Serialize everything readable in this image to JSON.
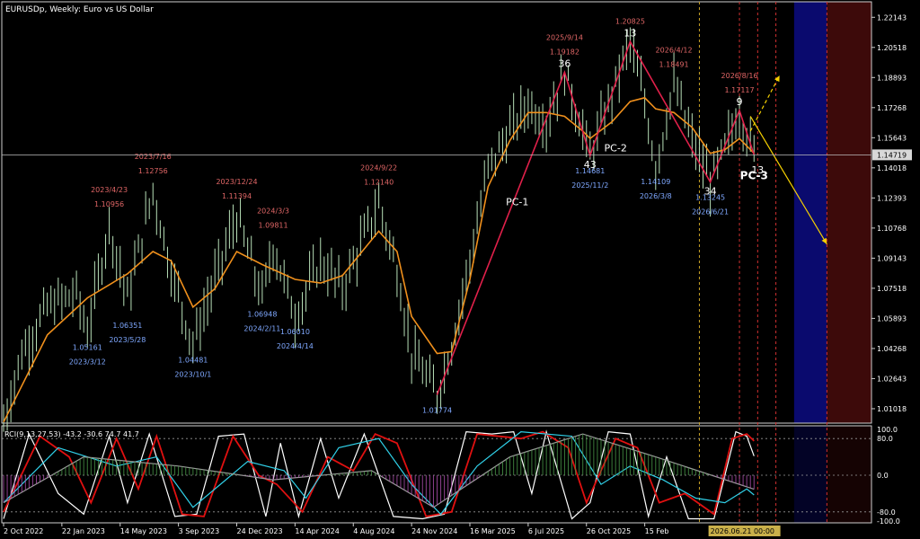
{
  "window": {
    "title": "EURUSDp, Weekly:  Euro vs US Dollar"
  },
  "chart_data": {
    "type": "line",
    "symbol": "EURUSDp",
    "timeframe": "Weekly",
    "price_axis": {
      "ticks": [
        "1.22143",
        "1.20518",
        "1.18893",
        "1.17268",
        "1.15643",
        "1.14018",
        "1.12393",
        "1.10768",
        "1.09143",
        "1.07518",
        "1.05893",
        "1.04268",
        "1.02643",
        "1.01018"
      ],
      "range": [
        1.0024,
        1.2298
      ],
      "current_price": "1.14719",
      "current_value": 1.14719
    },
    "time_axis": {
      "ticks": [
        "2 Oct 2022",
        "22 Jan 2023",
        "14 May 2023",
        "3 Sep 2023",
        "24 Dec 2023",
        "14 Apr 2024",
        "4 Aug 2024",
        "24 Nov 2024",
        "16 Mar 2025",
        "6 Jul 2025",
        "26 Oct 2025",
        "15 Feb"
      ],
      "cursor_label": "2026.06.21 00:00"
    },
    "price_series": [
      {
        "d": "2022-10-02",
        "p": 1.003
      },
      {
        "d": "2022-11-06",
        "p": 1.04
      },
      {
        "d": "2022-12-25",
        "p": 1.065
      },
      {
        "d": "2023-02-19",
        "p": 1.072
      },
      {
        "d": "2023-03-12",
        "p": 1.0516
      },
      {
        "d": "2023-04-23",
        "p": 1.1096
      },
      {
        "d": "2023-05-28",
        "p": 1.07
      },
      {
        "d": "2023-07-16",
        "p": 1.1276
      },
      {
        "d": "2023-08-20",
        "p": 1.085
      },
      {
        "d": "2023-10-01",
        "p": 1.0448
      },
      {
        "d": "2023-11-12",
        "p": 1.08
      },
      {
        "d": "2023-12-24",
        "p": 1.1139
      },
      {
        "d": "2024-02-11",
        "p": 1.07
      },
      {
        "d": "2024-03-03",
        "p": 1.0981
      },
      {
        "d": "2024-04-14",
        "p": 1.0601
      },
      {
        "d": "2024-06-02",
        "p": 1.09
      },
      {
        "d": "2024-07-14",
        "p": 1.075
      },
      {
        "d": "2024-09-22",
        "p": 1.1214
      },
      {
        "d": "2024-10-27",
        "p": 1.085
      },
      {
        "d": "2024-11-24",
        "p": 1.04
      },
      {
        "d": "2025-01-12",
        "p": 1.0177
      },
      {
        "d": "2025-02-09",
        "p": 1.045
      },
      {
        "d": "2025-03-16",
        "p": 1.09
      },
      {
        "d": "2025-04-20",
        "p": 1.14
      },
      {
        "d": "2025-06-01",
        "p": 1.16
      },
      {
        "d": "2025-07-06",
        "p": 1.175
      },
      {
        "d": "2025-08-10",
        "p": 1.165
      },
      {
        "d": "2025-09-14",
        "p": 1.1918
      },
      {
        "d": "2025-10-19",
        "p": 1.16
      },
      {
        "d": "2025-11-02",
        "p": 1.1468
      },
      {
        "d": "2025-12-14",
        "p": 1.18
      },
      {
        "d": "2026-01-18",
        "p": 1.2083
      },
      {
        "d": "2026-02-15",
        "p": 1.175
      },
      {
        "d": "2026-03-08",
        "p": 1.1411
      },
      {
        "d": "2026-04-12",
        "p": 1.1849
      },
      {
        "d": "2026-05-17",
        "p": 1.155
      },
      {
        "d": "2026-06-21",
        "p": 1.1325
      },
      {
        "d": "2026-07-19",
        "p": 1.15
      },
      {
        "d": "2026-08-16",
        "p": 1.1712
      },
      {
        "d": "2026-09-13",
        "p": 1.1472
      }
    ],
    "ma_series": [
      {
        "d": "2022-10-02",
        "p": 1.003
      },
      {
        "d": "2022-12-25",
        "p": 1.05
      },
      {
        "d": "2023-03-12",
        "p": 1.07
      },
      {
        "d": "2023-05-28",
        "p": 1.083
      },
      {
        "d": "2023-07-16",
        "p": 1.095
      },
      {
        "d": "2023-08-20",
        "p": 1.09
      },
      {
        "d": "2023-10-01",
        "p": 1.065
      },
      {
        "d": "2023-11-12",
        "p": 1.075
      },
      {
        "d": "2023-12-24",
        "p": 1.095
      },
      {
        "d": "2024-02-11",
        "p": 1.088
      },
      {
        "d": "2024-04-14",
        "p": 1.08
      },
      {
        "d": "2024-06-02",
        "p": 1.078
      },
      {
        "d": "2024-07-14",
        "p": 1.082
      },
      {
        "d": "2024-09-22",
        "p": 1.106
      },
      {
        "d": "2024-10-27",
        "p": 1.095
      },
      {
        "d": "2024-11-24",
        "p": 1.06
      },
      {
        "d": "2025-01-12",
        "p": 1.04
      },
      {
        "d": "2025-02-09",
        "p": 1.041
      },
      {
        "d": "2025-03-16",
        "p": 1.08
      },
      {
        "d": "2025-04-20",
        "p": 1.13
      },
      {
        "d": "2025-06-01",
        "p": 1.155
      },
      {
        "d": "2025-07-06",
        "p": 1.17
      },
      {
        "d": "2025-08-10",
        "p": 1.17
      },
      {
        "d": "2025-09-14",
        "p": 1.168
      },
      {
        "d": "2025-10-19",
        "p": 1.16
      },
      {
        "d": "2025-11-02",
        "p": 1.156
      },
      {
        "d": "2025-12-14",
        "p": 1.165
      },
      {
        "d": "2026-01-18",
        "p": 1.176
      },
      {
        "d": "2026-02-15",
        "p": 1.178
      },
      {
        "d": "2026-03-08",
        "p": 1.172
      },
      {
        "d": "2026-04-12",
        "p": 1.17
      },
      {
        "d": "2026-05-17",
        "p": 1.162
      },
      {
        "d": "2026-06-21",
        "p": 1.148
      },
      {
        "d": "2026-07-19",
        "p": 1.15
      },
      {
        "d": "2026-08-16",
        "p": 1.156
      },
      {
        "d": "2026-09-13",
        "p": 1.148
      }
    ],
    "zigzag": [
      {
        "d": "2025-01-12",
        "p": 1.0177
      },
      {
        "d": "2025-09-14",
        "p": 1.1918
      },
      {
        "d": "2025-11-02",
        "p": 1.1468
      },
      {
        "d": "2026-01-18",
        "p": 1.2083
      },
      {
        "d": "2026-06-21",
        "p": 1.1325
      },
      {
        "d": "2026-08-16",
        "p": 1.1712
      },
      {
        "d": "2026-09-13",
        "p": 1.1472
      }
    ],
    "projections": [
      {
        "style": "dashed",
        "from": {
          "d": "2026-09-06",
          "p": 1.16
        },
        "to": {
          "d": "2026-11-01",
          "p": 1.19
        }
      },
      {
        "style": "solid",
        "from": {
          "d": "2026-09-06",
          "p": 1.168
        },
        "to": {
          "d": "2027-01-31",
          "p": 1.099
        }
      }
    ],
    "highs": [
      {
        "date": "2023/4/23",
        "price": "1.10956",
        "d": "2023-04-23",
        "p": 1.1096
      },
      {
        "date": "2023/7/16",
        "price": "1.12756",
        "d": "2023-07-16",
        "p": 1.1276
      },
      {
        "date": "2023/12/24",
        "price": "1.11394",
        "d": "2023-12-24",
        "p": 1.1139
      },
      {
        "date": "2024/3/3",
        "price": "1.09811",
        "d": "2024-03-03",
        "p": 1.0981
      },
      {
        "date": "2024/9/22",
        "price": "1.12140",
        "d": "2024-09-22",
        "p": 1.1214
      },
      {
        "date": "2025/9/14",
        "price": "1.19182",
        "d": "2025-09-14",
        "p": 1.1918
      },
      {
        "date": "",
        "price": "1.20825",
        "d": "2026-01-18",
        "p": 1.2083
      },
      {
        "date": "2026/4/12",
        "price": "1.18491",
        "d": "2026-04-12",
        "p": 1.1849
      },
      {
        "date": "2026/8/16",
        "price": "1.17117",
        "d": "2026-08-16",
        "p": 1.1712
      }
    ],
    "lows": [
      {
        "date": "2023/3/12",
        "price": "1.05161",
        "d": "2023-03-12",
        "p": 1.0516
      },
      {
        "date": "2023/5/28",
        "price": "1.06351",
        "d": "2023-05-28",
        "p": 1.0635
      },
      {
        "date": "2023/10/1",
        "price": "1.04481",
        "d": "2023-10-01",
        "p": 1.0448
      },
      {
        "date": "2024/2/11",
        "price": "1.06948",
        "d": "2024-02-11",
        "p": 1.0695
      },
      {
        "date": "2024/4/14",
        "price": "1.06010",
        "d": "2024-04-14",
        "p": 1.0601
      },
      {
        "date": "",
        "price": "1.01774",
        "d": "2025-01-12",
        "p": 1.0177
      },
      {
        "date": "2025/11/2",
        "price": "1.14681",
        "d": "2025-11-02",
        "p": 1.1468
      },
      {
        "date": "2026/3/8",
        "price": "1.14109",
        "d": "2026-03-08",
        "p": 1.1411
      },
      {
        "date": "2026/6/21",
        "price": "1.13245",
        "d": "2026-06-21",
        "p": 1.1325
      }
    ],
    "wave_labels": [
      {
        "text": "36",
        "d": "2025-09-14",
        "p": 1.1918
      },
      {
        "text": "43",
        "d": "2025-11-02",
        "p": 1.1468
      },
      {
        "text": "13",
        "d": "2026-01-18",
        "p": 1.2083
      },
      {
        "text": "34",
        "d": "2026-06-21",
        "p": 1.1325
      },
      {
        "text": "9",
        "d": "2026-08-16",
        "p": 1.1712
      },
      {
        "text": "13",
        "d": "2026-09-20",
        "p": 1.144
      }
    ],
    "pattern_labels": [
      {
        "text": "PC-1",
        "d": "2025-06-15",
        "p": 1.12,
        "bold": false
      },
      {
        "text": "PC-2",
        "d": "2025-12-21",
        "p": 1.149,
        "bold": false
      },
      {
        "text": "PC-3",
        "d": "2026-09-13",
        "p": 1.134,
        "bold": true
      }
    ],
    "time_markers": [
      {
        "d": "2026-05-31",
        "color": "#c9a227",
        "style": "dashed"
      },
      {
        "d": "2026-08-16",
        "color": "#d03030",
        "style": "dashed"
      },
      {
        "d": "2026-09-20",
        "color": "#d03030",
        "style": "dashed"
      },
      {
        "d": "2026-10-25",
        "color": "#d03030",
        "style": "dashed"
      },
      {
        "d": "2027-01-31",
        "color": "#d03030",
        "style": "dashed"
      }
    ],
    "zones": [
      {
        "from": "2026-11-29",
        "to": "2027-01-31",
        "color": "#0a0a6e"
      },
      {
        "from": "2027-01-31",
        "to": "2027-05-30",
        "color": "#3d0a0a"
      }
    ],
    "indicator": {
      "label": "RCI(9,13,27,53) -43.2 -30.6 74.7 41.7",
      "ticks": [
        "100.0",
        "80.0",
        "0.0",
        "-80.0",
        "-100.0"
      ],
      "range": [
        -100,
        100
      ],
      "levels": [
        80,
        0,
        -80
      ],
      "lines": [
        {
          "name": "RCI 9",
          "color": "#ffffff",
          "values": [
            {
              "d": "2022-10-02",
              "v": -95
            },
            {
              "d": "2022-11-20",
              "v": 90
            },
            {
              "d": "2023-01-15",
              "v": -40
            },
            {
              "d": "2023-03-05",
              "v": -85
            },
            {
              "d": "2023-04-23",
              "v": 85
            },
            {
              "d": "2023-05-28",
              "v": -60
            },
            {
              "d": "2023-07-09",
              "v": 90
            },
            {
              "d": "2023-08-27",
              "v": -90
            },
            {
              "d": "2023-10-08",
              "v": -85
            },
            {
              "d": "2023-11-19",
              "v": 85
            },
            {
              "d": "2024-01-07",
              "v": 90
            },
            {
              "d": "2024-02-18",
              "v": -90
            },
            {
              "d": "2024-03-17",
              "v": 70
            },
            {
              "d": "2024-04-21",
              "v": -90
            },
            {
              "d": "2024-06-02",
              "v": 80
            },
            {
              "d": "2024-07-07",
              "v": -50
            },
            {
              "d": "2024-08-25",
              "v": 90
            },
            {
              "d": "2024-10-20",
              "v": -90
            },
            {
              "d": "2024-12-15",
              "v": -95
            },
            {
              "d": "2025-01-26",
              "v": -85
            },
            {
              "d": "2025-03-09",
              "v": 95
            },
            {
              "d": "2025-04-27",
              "v": 90
            },
            {
              "d": "2025-06-08",
              "v": 95
            },
            {
              "d": "2025-07-13",
              "v": -40
            },
            {
              "d": "2025-08-10",
              "v": 95
            },
            {
              "d": "2025-09-28",
              "v": -95
            },
            {
              "d": "2025-11-02",
              "v": -60
            },
            {
              "d": "2025-12-07",
              "v": 95
            },
            {
              "d": "2026-01-18",
              "v": 90
            },
            {
              "d": "2026-02-22",
              "v": -90
            },
            {
              "d": "2026-03-29",
              "v": 40
            },
            {
              "d": "2026-05-10",
              "v": -95
            },
            {
              "d": "2026-06-28",
              "v": -95
            },
            {
              "d": "2026-08-09",
              "v": 95
            },
            {
              "d": "2026-08-30",
              "v": 85
            },
            {
              "d": "2026-09-13",
              "v": 41.7
            }
          ]
        },
        {
          "name": "RCI 13",
          "color": "#e01010",
          "values": [
            {
              "d": "2022-10-02",
              "v": -80
            },
            {
              "d": "2022-12-11",
              "v": 85
            },
            {
              "d": "2023-02-05",
              "v": 40
            },
            {
              "d": "2023-03-19",
              "v": -60
            },
            {
              "d": "2023-05-07",
              "v": 80
            },
            {
              "d": "2023-06-18",
              "v": -30
            },
            {
              "d": "2023-07-23",
              "v": 85
            },
            {
              "d": "2023-09-10",
              "v": -85
            },
            {
              "d": "2023-10-22",
              "v": -90
            },
            {
              "d": "2023-12-17",
              "v": 85
            },
            {
              "d": "2024-02-04",
              "v": 0
            },
            {
              "d": "2024-03-10",
              "v": -20
            },
            {
              "d": "2024-04-28",
              "v": -80
            },
            {
              "d": "2024-06-16",
              "v": 40
            },
            {
              "d": "2024-08-04",
              "v": 10
            },
            {
              "d": "2024-09-15",
              "v": 90
            },
            {
              "d": "2024-10-27",
              "v": 70
            },
            {
              "d": "2024-12-22",
              "v": -90
            },
            {
              "d": "2025-02-09",
              "v": -80
            },
            {
              "d": "2025-03-30",
              "v": 90
            },
            {
              "d": "2025-06-22",
              "v": 80
            },
            {
              "d": "2025-08-03",
              "v": 95
            },
            {
              "d": "2025-09-21",
              "v": 60
            },
            {
              "d": "2025-10-26",
              "v": -60
            },
            {
              "d": "2025-12-21",
              "v": 80
            },
            {
              "d": "2026-02-01",
              "v": 60
            },
            {
              "d": "2026-03-15",
              "v": -60
            },
            {
              "d": "2026-05-03",
              "v": -40
            },
            {
              "d": "2026-06-28",
              "v": -85
            },
            {
              "d": "2026-08-02",
              "v": 80
            },
            {
              "d": "2026-08-30",
              "v": 90
            },
            {
              "d": "2026-09-13",
              "v": 74.7
            }
          ]
        },
        {
          "name": "RCI 27",
          "color": "#30d0e8",
          "values": [
            {
              "d": "2022-10-02",
              "v": -60
            },
            {
              "d": "2023-01-15",
              "v": 60
            },
            {
              "d": "2023-05-07",
              "v": 20
            },
            {
              "d": "2023-07-23",
              "v": 40
            },
            {
              "d": "2023-10-01",
              "v": -70
            },
            {
              "d": "2024-01-14",
              "v": 30
            },
            {
              "d": "2024-03-24",
              "v": 10
            },
            {
              "d": "2024-05-05",
              "v": -50
            },
            {
              "d": "2024-07-07",
              "v": 60
            },
            {
              "d": "2024-09-22",
              "v": 80
            },
            {
              "d": "2024-11-24",
              "v": -20
            },
            {
              "d": "2025-01-19",
              "v": -85
            },
            {
              "d": "2025-03-30",
              "v": 20
            },
            {
              "d": "2025-06-22",
              "v": 95
            },
            {
              "d": "2025-09-28",
              "v": 85
            },
            {
              "d": "2025-11-23",
              "v": -20
            },
            {
              "d": "2026-01-18",
              "v": 20
            },
            {
              "d": "2026-03-22",
              "v": -10
            },
            {
              "d": "2026-05-24",
              "v": -50
            },
            {
              "d": "2026-07-19",
              "v": -60
            },
            {
              "d": "2026-08-30",
              "v": -30
            },
            {
              "d": "2026-09-13",
              "v": -43.2
            }
          ]
        },
        {
          "name": "RCI 53",
          "color": "#9a9a9a",
          "values": [
            {
              "d": "2022-10-02",
              "v": -60
            },
            {
              "d": "2023-03-05",
              "v": 40
            },
            {
              "d": "2023-09-03",
              "v": 20
            },
            {
              "d": "2024-03-03",
              "v": -10
            },
            {
              "d": "2024-09-08",
              "v": 10
            },
            {
              "d": "2025-01-05",
              "v": -70
            },
            {
              "d": "2025-06-01",
              "v": 40
            },
            {
              "d": "2025-10-19",
              "v": 90
            },
            {
              "d": "2026-03-08",
              "v": 40
            },
            {
              "d": "2026-09-13",
              "v": -30.6
            }
          ]
        }
      ]
    }
  }
}
